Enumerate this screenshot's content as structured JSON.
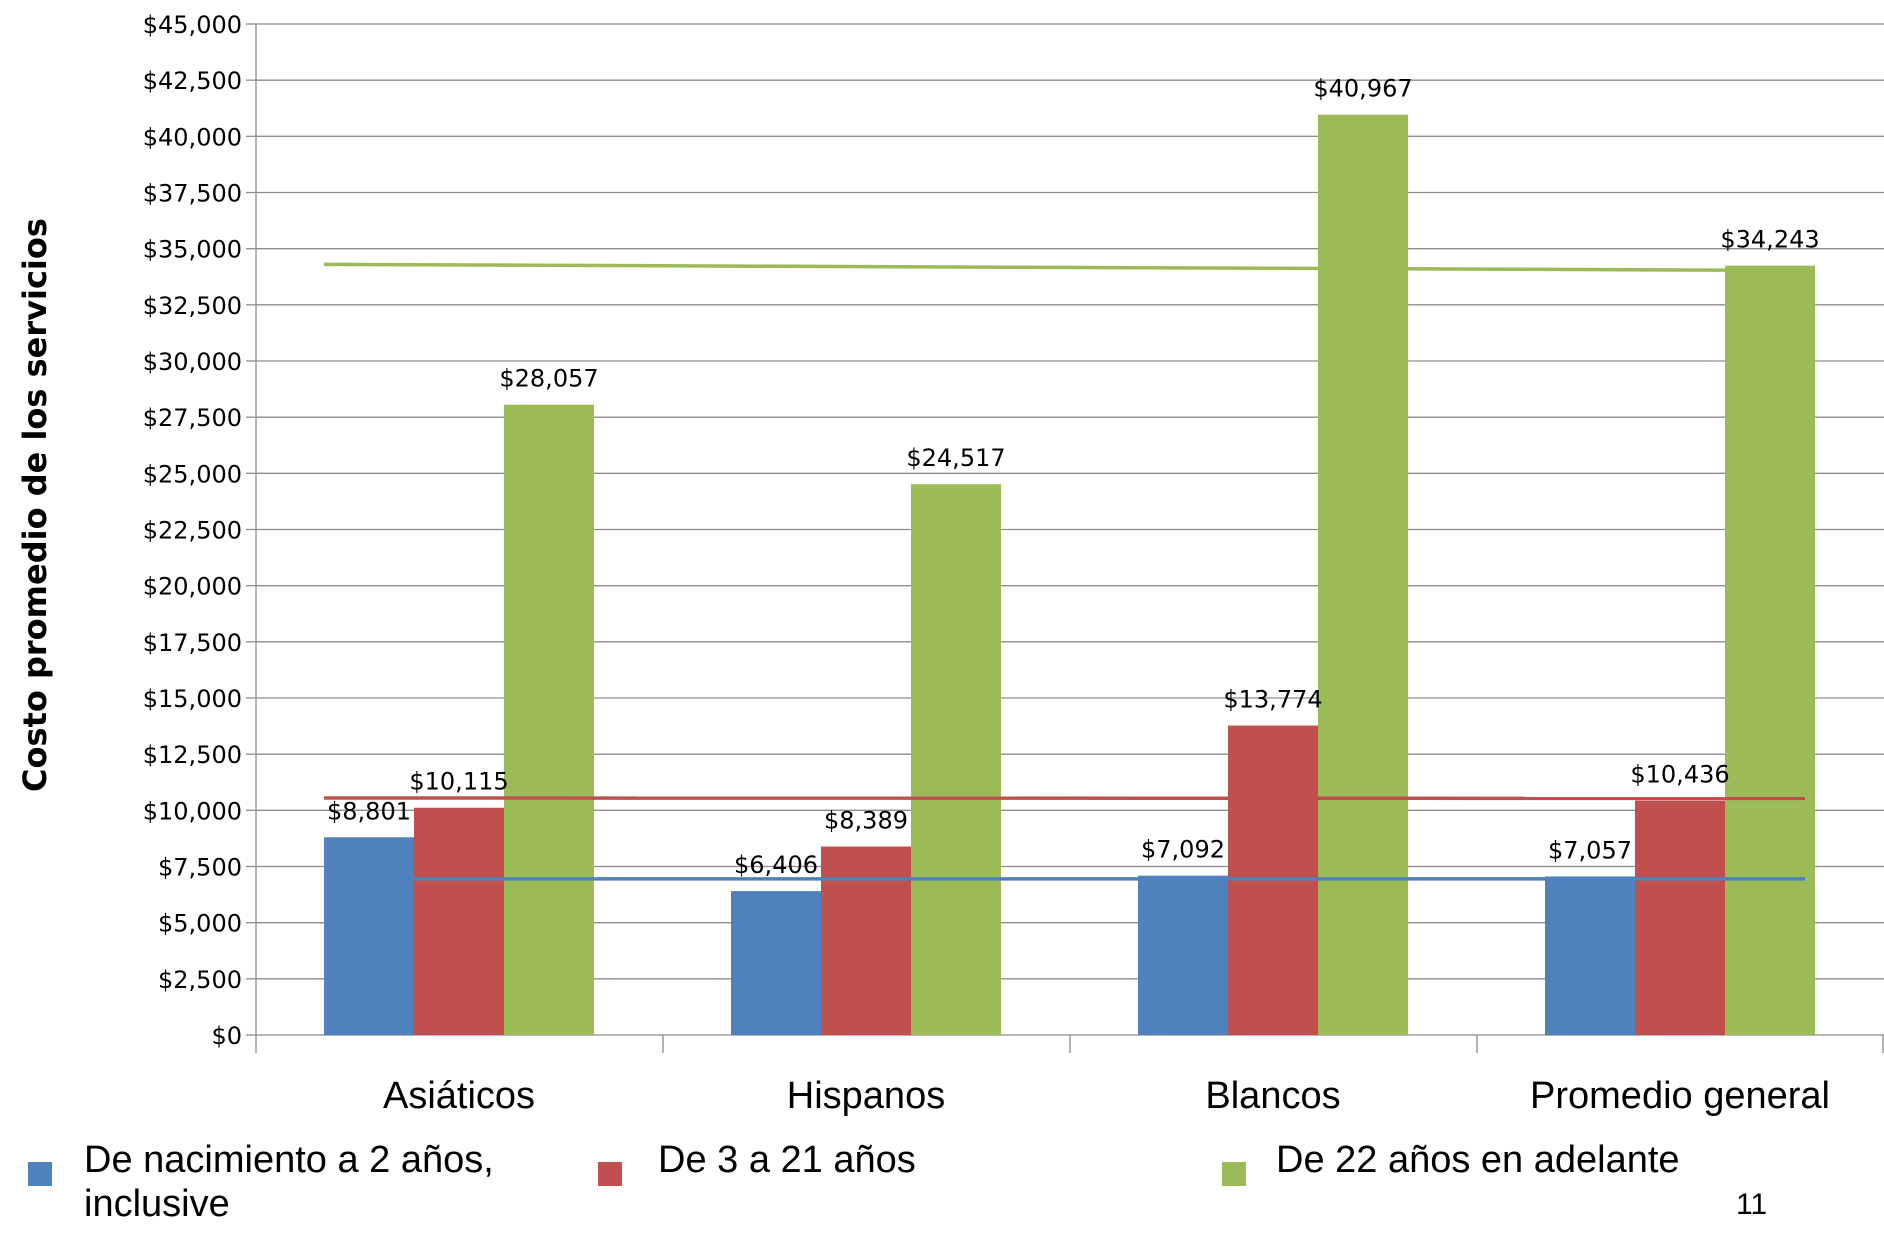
{
  "chart_data": {
    "type": "bar",
    "title": "",
    "xlabel": "",
    "ylabel": "Costo promedio de los servicios",
    "ylim": [
      0,
      45000
    ],
    "y_tick_labels": [
      "$0",
      "$2,500",
      "$5,000",
      "$7,500",
      "$10,000",
      "$12,500",
      "$15,000",
      "$17,500",
      "$20,000",
      "$22,500",
      "$25,000",
      "$27,500",
      "$30,000",
      "$32,500",
      "$35,000",
      "$37,500",
      "$40,000",
      "$42,500",
      "$45,000"
    ],
    "grid": true,
    "legend_position": "bottom",
    "categories": [
      "Asiáticos",
      "Hispanos",
      "Blancos",
      "Promedio general"
    ],
    "series": [
      {
        "name": "De nacimiento a 2 años, inclusive",
        "color": "#4f81bd",
        "values": [
          8801,
          6406,
          7092,
          7057
        ],
        "labels": [
          "$8,801",
          "$6,406",
          "$7,092",
          "$7,057"
        ],
        "reference_line": [
          6950,
          6950
        ]
      },
      {
        "name": "De 3 a 21 años",
        "color": "#c0504d",
        "values": [
          10115,
          8389,
          13774,
          10436
        ],
        "labels": [
          "$10,115",
          "$8,389",
          "$13,774",
          "$10,436"
        ],
        "reference_line": [
          10550,
          10530
        ]
      },
      {
        "name": "De 22 años en adelante",
        "color": "#9bbb59",
        "values": [
          28057,
          24517,
          40967,
          34243
        ],
        "labels": [
          "$28,057",
          "$24,517",
          "$40,967",
          "$34,243"
        ],
        "reference_line": [
          34300,
          34030
        ]
      }
    ]
  },
  "legend": {
    "items": [
      {
        "line1": "De nacimiento a 2 años,",
        "line2": "inclusive",
        "color": "#4f81bd"
      },
      {
        "line1": "De 3 a 21 años",
        "line2": "",
        "color": "#c0504d"
      },
      {
        "line1": "De 22 años en adelante",
        "line2": "",
        "color": "#9bbb59"
      }
    ]
  },
  "page_number": "11"
}
